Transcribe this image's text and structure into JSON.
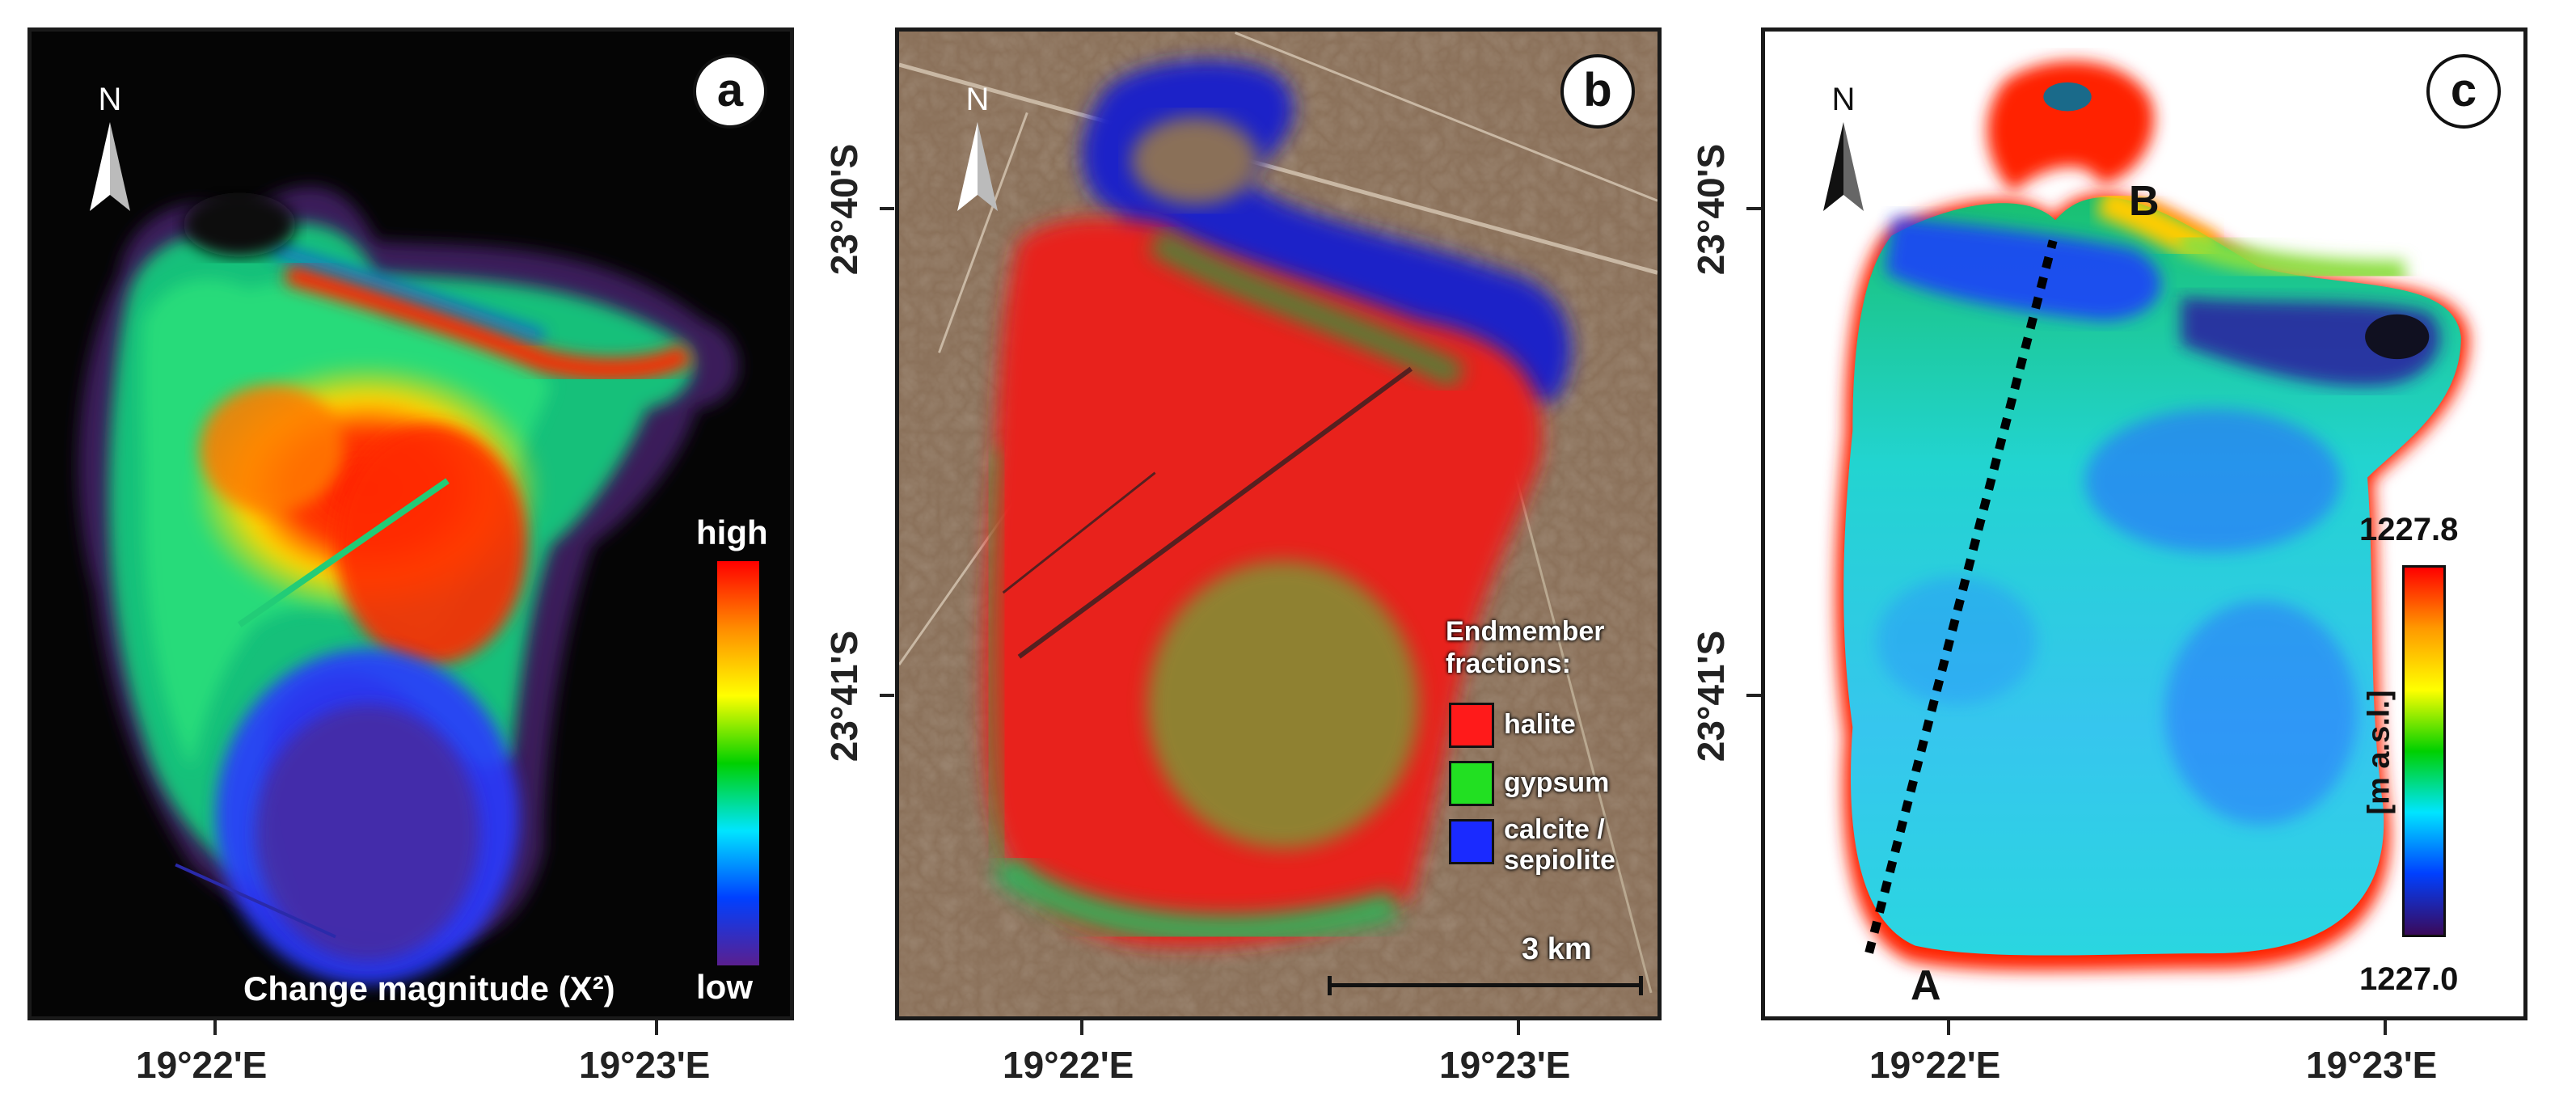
{
  "panels": [
    {
      "id": "a",
      "badge": "a",
      "north": "N",
      "colorbar": {
        "top_label": "high",
        "bottom_label": "low",
        "stops": [
          "#ff0000",
          "#ff8c00",
          "#ffff00",
          "#00d000",
          "#00e5ff",
          "#0040ff",
          "#5a1f8f"
        ]
      },
      "caption": "Change magnitude (X²)"
    },
    {
      "id": "b",
      "badge": "b",
      "north": "N",
      "legend_title": [
        "Endmember",
        "fractions:"
      ],
      "legend_items": [
        {
          "label": "halite",
          "color": "#ff1a1a"
        },
        {
          "label": "gypsum",
          "color": "#22e022"
        },
        {
          "label": "calcite / sepiolite",
          "label_lines": [
            "calcite /",
            "sepiolite"
          ],
          "color": "#1a2aff"
        }
      ],
      "scale_bar": "3 km"
    },
    {
      "id": "c",
      "badge": "c",
      "north": "N",
      "profile": {
        "start": "A",
        "end": "B"
      },
      "colorbar": {
        "max": "1227.8",
        "min": "1227.0",
        "unit": "[m a.s.l.]",
        "stops": [
          "#ff0000",
          "#ff9a00",
          "#ffff00",
          "#00d000",
          "#00e5ff",
          "#0040ff",
          "#3a0a5a"
        ]
      }
    }
  ],
  "axes": {
    "lat_labels": [
      "23°40'S",
      "23°41'S"
    ],
    "lon_labels": [
      "19°22'E",
      "19°23'E"
    ]
  }
}
